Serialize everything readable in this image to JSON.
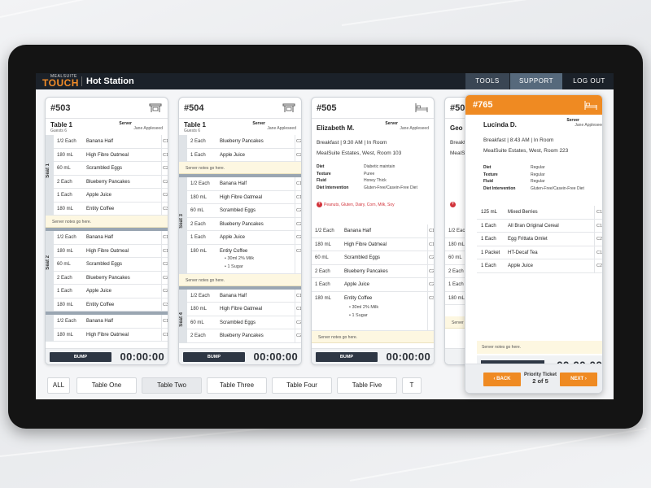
{
  "header": {
    "logo_small": "MEALSUITE",
    "logo_big": "TOUCH",
    "title": "Hot Station",
    "tools": "TOOLS",
    "support": "SUPPORT",
    "logout": "LOG OUT"
  },
  "colors": {
    "accent": "#ef8a22",
    "dark": "#1b2129",
    "notes_bg": "#fdf7e1",
    "allergy": "#d2333b"
  },
  "common": {
    "server_label": "Server",
    "server_name": "Jane Appleseed",
    "notes": "Server notes go here.",
    "bump": "BUMP",
    "timer": "00:00:00"
  },
  "card503": {
    "num": "#503",
    "table": "Table 1",
    "guests": "Guests 6",
    "seat1": "Seat 1",
    "seat2": "Seat 2",
    "seat1_rows": [
      {
        "qty": "1/2 Each",
        "item": "Banana Half",
        "course": "C1"
      },
      {
        "qty": "180 mL",
        "item": "High Fibre Oatmeal",
        "course": "C1"
      },
      {
        "qty": "60 mL",
        "item": "Scrambled Eggs",
        "course": "C2"
      },
      {
        "qty": "2 Each",
        "item": "Blueberry Pancakes",
        "course": "C2"
      },
      {
        "qty": "1 Each",
        "item": "Apple Juice",
        "course": "C2"
      },
      {
        "qty": "180 mL",
        "item": "Entity Coffee",
        "course": "C3"
      }
    ],
    "seat2_rows": [
      {
        "qty": "1/2 Each",
        "item": "Banana Half",
        "course": "C1"
      },
      {
        "qty": "180 mL",
        "item": "High Fibre Oatmeal",
        "course": "C1"
      },
      {
        "qty": "60 mL",
        "item": "Scrambled Eggs",
        "course": "C2"
      },
      {
        "qty": "2 Each",
        "item": "Blueberry Pancakes",
        "course": "C2"
      },
      {
        "qty": "1 Each",
        "item": "Apple Juice",
        "course": "C2"
      },
      {
        "qty": "180 mL",
        "item": "Entity Coffee",
        "course": "C3"
      }
    ],
    "seat3_rows": [
      {
        "qty": "1/2 Each",
        "item": "Banana Half",
        "course": "C1"
      },
      {
        "qty": "180 mL",
        "item": "High Fibre Oatmeal",
        "course": "C1"
      }
    ]
  },
  "card504": {
    "num": "#504",
    "table": "Table 1",
    "guests": "Guests 6",
    "seat3": "Seat 3",
    "seat4": "Seat 4",
    "top_rows": [
      {
        "qty": "2 Each",
        "item": "Blueberry Pancakes",
        "course": "C2"
      },
      {
        "qty": "1 Each",
        "item": "Apple Juice",
        "course": "C2"
      }
    ],
    "seat3_rows": [
      {
        "qty": "1/2 Each",
        "item": "Banana Half",
        "course": "C1"
      },
      {
        "qty": "180 mL",
        "item": "High Fibre Oatmeal",
        "course": "C1"
      },
      {
        "qty": "60 mL",
        "item": "Scrambled Eggs",
        "course": "C2"
      },
      {
        "qty": "2 Each",
        "item": "Blueberry Pancakes",
        "course": "C2"
      },
      {
        "qty": "1 Each",
        "item": "Apple Juice",
        "course": "C2"
      }
    ],
    "coffee": {
      "qty": "180 mL",
      "item": "Entity Coffee",
      "course": "C3",
      "sub1": "• 30ml 2% Milk",
      "sub2": "• 1 Sugar"
    },
    "seat4_rows": [
      {
        "qty": "1/2 Each",
        "item": "Banana Half",
        "course": "C1"
      },
      {
        "qty": "180 mL",
        "item": "High Fibre Oatmeal",
        "course": "C1"
      },
      {
        "qty": "60 mL",
        "item": "Scrambled Eggs",
        "course": "C2"
      },
      {
        "qty": "2 Each",
        "item": "Blueberry Pancakes",
        "course": "C2"
      }
    ]
  },
  "card505": {
    "num": "#505",
    "name": "Elizabeth M.",
    "meal": "Breakfast  |  9:30 AM  |  In Room",
    "location": "MealSuite Estates, West, Room 103",
    "diet": [
      {
        "k": "Diet",
        "v": "Diabetic maintain"
      },
      {
        "k": "Texture",
        "v": "Puree"
      },
      {
        "k": "Fluid",
        "v": "Honey Thick"
      },
      {
        "k": "Diet Intervention",
        "v": "Gluten-Free/Casein-Free Diet"
      }
    ],
    "allergies": "Peanuts, Gluten, Dairy, Corn, Milk, Soy",
    "rows": [
      {
        "qty": "1/2 Each",
        "item": "Banana Half",
        "course": "C1"
      },
      {
        "qty": "180 mL",
        "item": "High Fibre Oatmeal",
        "course": "C1"
      },
      {
        "qty": "60 mL",
        "item": "Scrambled Eggs",
        "course": "C2"
      },
      {
        "qty": "2 Each",
        "item": "Blueberry Pancakes",
        "course": "C2"
      },
      {
        "qty": "1 Each",
        "item": "Apple Juice",
        "course": "C2"
      }
    ],
    "coffee": {
      "qty": "180 mL",
      "item": "Entity Coffee",
      "course": "C3",
      "sub1": "• 30ml 2% Milk",
      "sub2": "• 1 Sugar"
    }
  },
  "card506": {
    "num": "#50",
    "name": "Geo",
    "meal": "Breakfast",
    "location": "MealSu",
    "rows": [
      {
        "qty": "1/2 Each"
      },
      {
        "qty": "180 mL"
      },
      {
        "qty": "60 mL"
      },
      {
        "qty": "2 Each"
      },
      {
        "qty": "1 Each"
      },
      {
        "qty": "180 mL"
      }
    ]
  },
  "panel": {
    "num": "#765",
    "name": "Lucinda D.",
    "meal": "Breakfast  |  8:43 AM  |  In Room",
    "location": "MealSuite Estates, West, Room 223",
    "diet": [
      {
        "k": "Diet",
        "v": "Regular"
      },
      {
        "k": "Texture",
        "v": "Regular"
      },
      {
        "k": "Fluid",
        "v": "Regular"
      },
      {
        "k": "Diet Intervention",
        "v": "Gluten-Free/Casein-Free Diet"
      }
    ],
    "rows": [
      {
        "qty": "125 mL",
        "item": "Mixed Berries",
        "course": "C1"
      },
      {
        "qty": "1 Each",
        "item": "All Bran Original Cereal",
        "course": "C1"
      },
      {
        "qty": "1 Each",
        "item": "Egg Frittata Omlet",
        "course": "C2"
      },
      {
        "qty": "1 Packet",
        "item": "HT-Decaf Tea",
        "course": "C1"
      },
      {
        "qty": "1 Each",
        "item": "Apple Juice",
        "course": "C2"
      }
    ],
    "back": "‹ BACK",
    "next": "NEXT ›",
    "priority": "Priority Ticket",
    "count": "2 of 5"
  },
  "tabs": [
    "ALL",
    "Table One",
    "Table Two",
    "Table Three",
    "Table Four",
    "Table Five",
    "T"
  ]
}
